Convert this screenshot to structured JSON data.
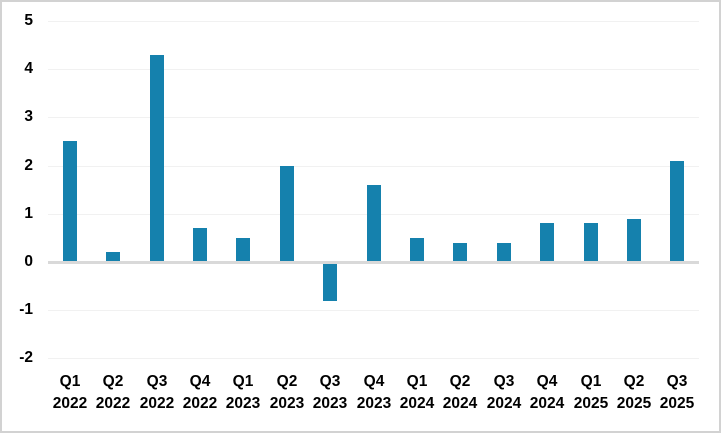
{
  "chart_data": {
    "type": "bar",
    "title": "",
    "xlabel": "",
    "ylabel": "",
    "categories": [
      "Q1 2022",
      "Q2 2022",
      "Q3 2022",
      "Q4 2022",
      "Q1 2023",
      "Q2 2023",
      "Q3 2023",
      "Q4 2023",
      "Q1 2024",
      "Q2 2024",
      "Q3 2024",
      "Q4 2024",
      "Q1 2025",
      "Q2 2025",
      "Q3 2025"
    ],
    "values": [
      2.5,
      0.2,
      4.3,
      0.7,
      0.5,
      2.0,
      -0.8,
      1.6,
      0.5,
      0.4,
      0.4,
      0.8,
      0.8,
      0.9,
      2.1
    ],
    "ylim": [
      -2,
      5
    ],
    "yticks": [
      5,
      4,
      3,
      2,
      1,
      0,
      -1,
      -2
    ],
    "grid": true,
    "legend": false,
    "colors": {
      "bar": "#1581AD",
      "gridline": "#F1F1F1",
      "zero_axis_line": "#D9D9D9",
      "tick_text": "#000000",
      "background": "#FFFFFF",
      "frame_border": "#D2D2D2"
    }
  }
}
